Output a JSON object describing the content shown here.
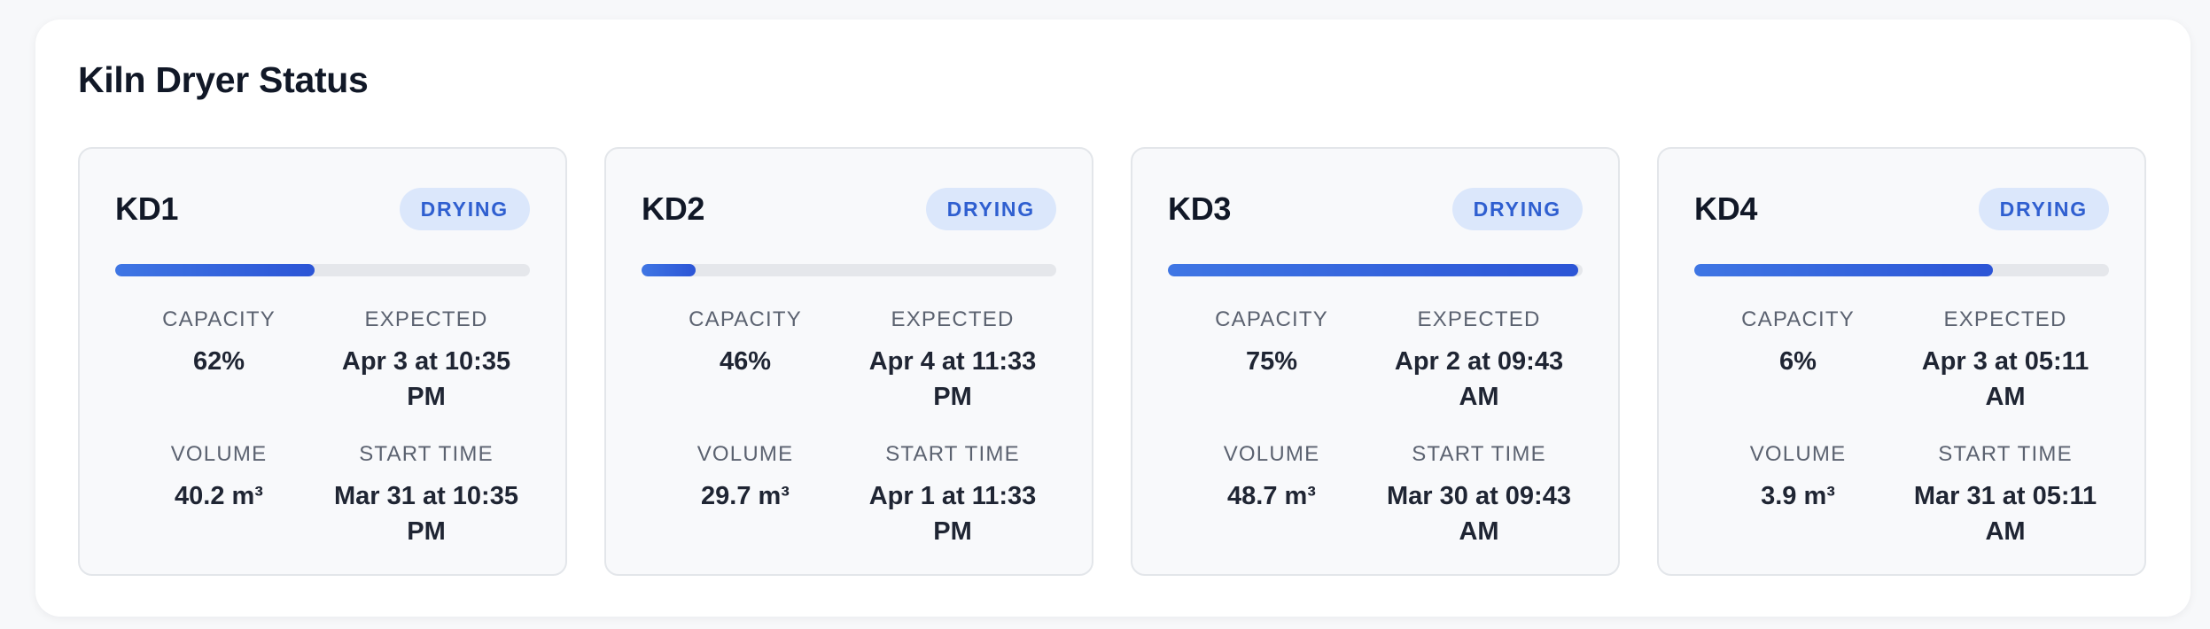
{
  "panel": {
    "title": "Kiln Dryer Status"
  },
  "labels": {
    "capacity": "CAPACITY",
    "expected": "EXPECTED",
    "volume": "VOLUME",
    "start_time": "START TIME"
  },
  "colors": {
    "badge_bg": "#dbe7fb",
    "badge_text": "#2f5fd0",
    "progress_fill": "#3566dc",
    "progress_track": "#e5e7eb"
  },
  "kilns": [
    {
      "name": "KD1",
      "status": "DRYING",
      "progress": 0.48,
      "capacity": "62%",
      "expected": "Apr 3 at 10:35 PM",
      "volume": "40.2 m³",
      "start_time": "Mar 31 at 10:35 PM"
    },
    {
      "name": "KD2",
      "status": "DRYING",
      "progress": 0.13,
      "capacity": "46%",
      "expected": "Apr 4 at 11:33 PM",
      "volume": "29.7 m³",
      "start_time": "Apr 1 at 11:33 PM"
    },
    {
      "name": "KD3",
      "status": "DRYING",
      "progress": 0.99,
      "capacity": "75%",
      "expected": "Apr 2 at 09:43 AM",
      "volume": "48.7 m³",
      "start_time": "Mar 30 at 09:43 AM"
    },
    {
      "name": "KD4",
      "status": "DRYING",
      "progress": 0.72,
      "capacity": "6%",
      "expected": "Apr 3 at 05:11 AM",
      "volume": "3.9 m³",
      "start_time": "Mar 31 at 05:11 AM"
    }
  ]
}
